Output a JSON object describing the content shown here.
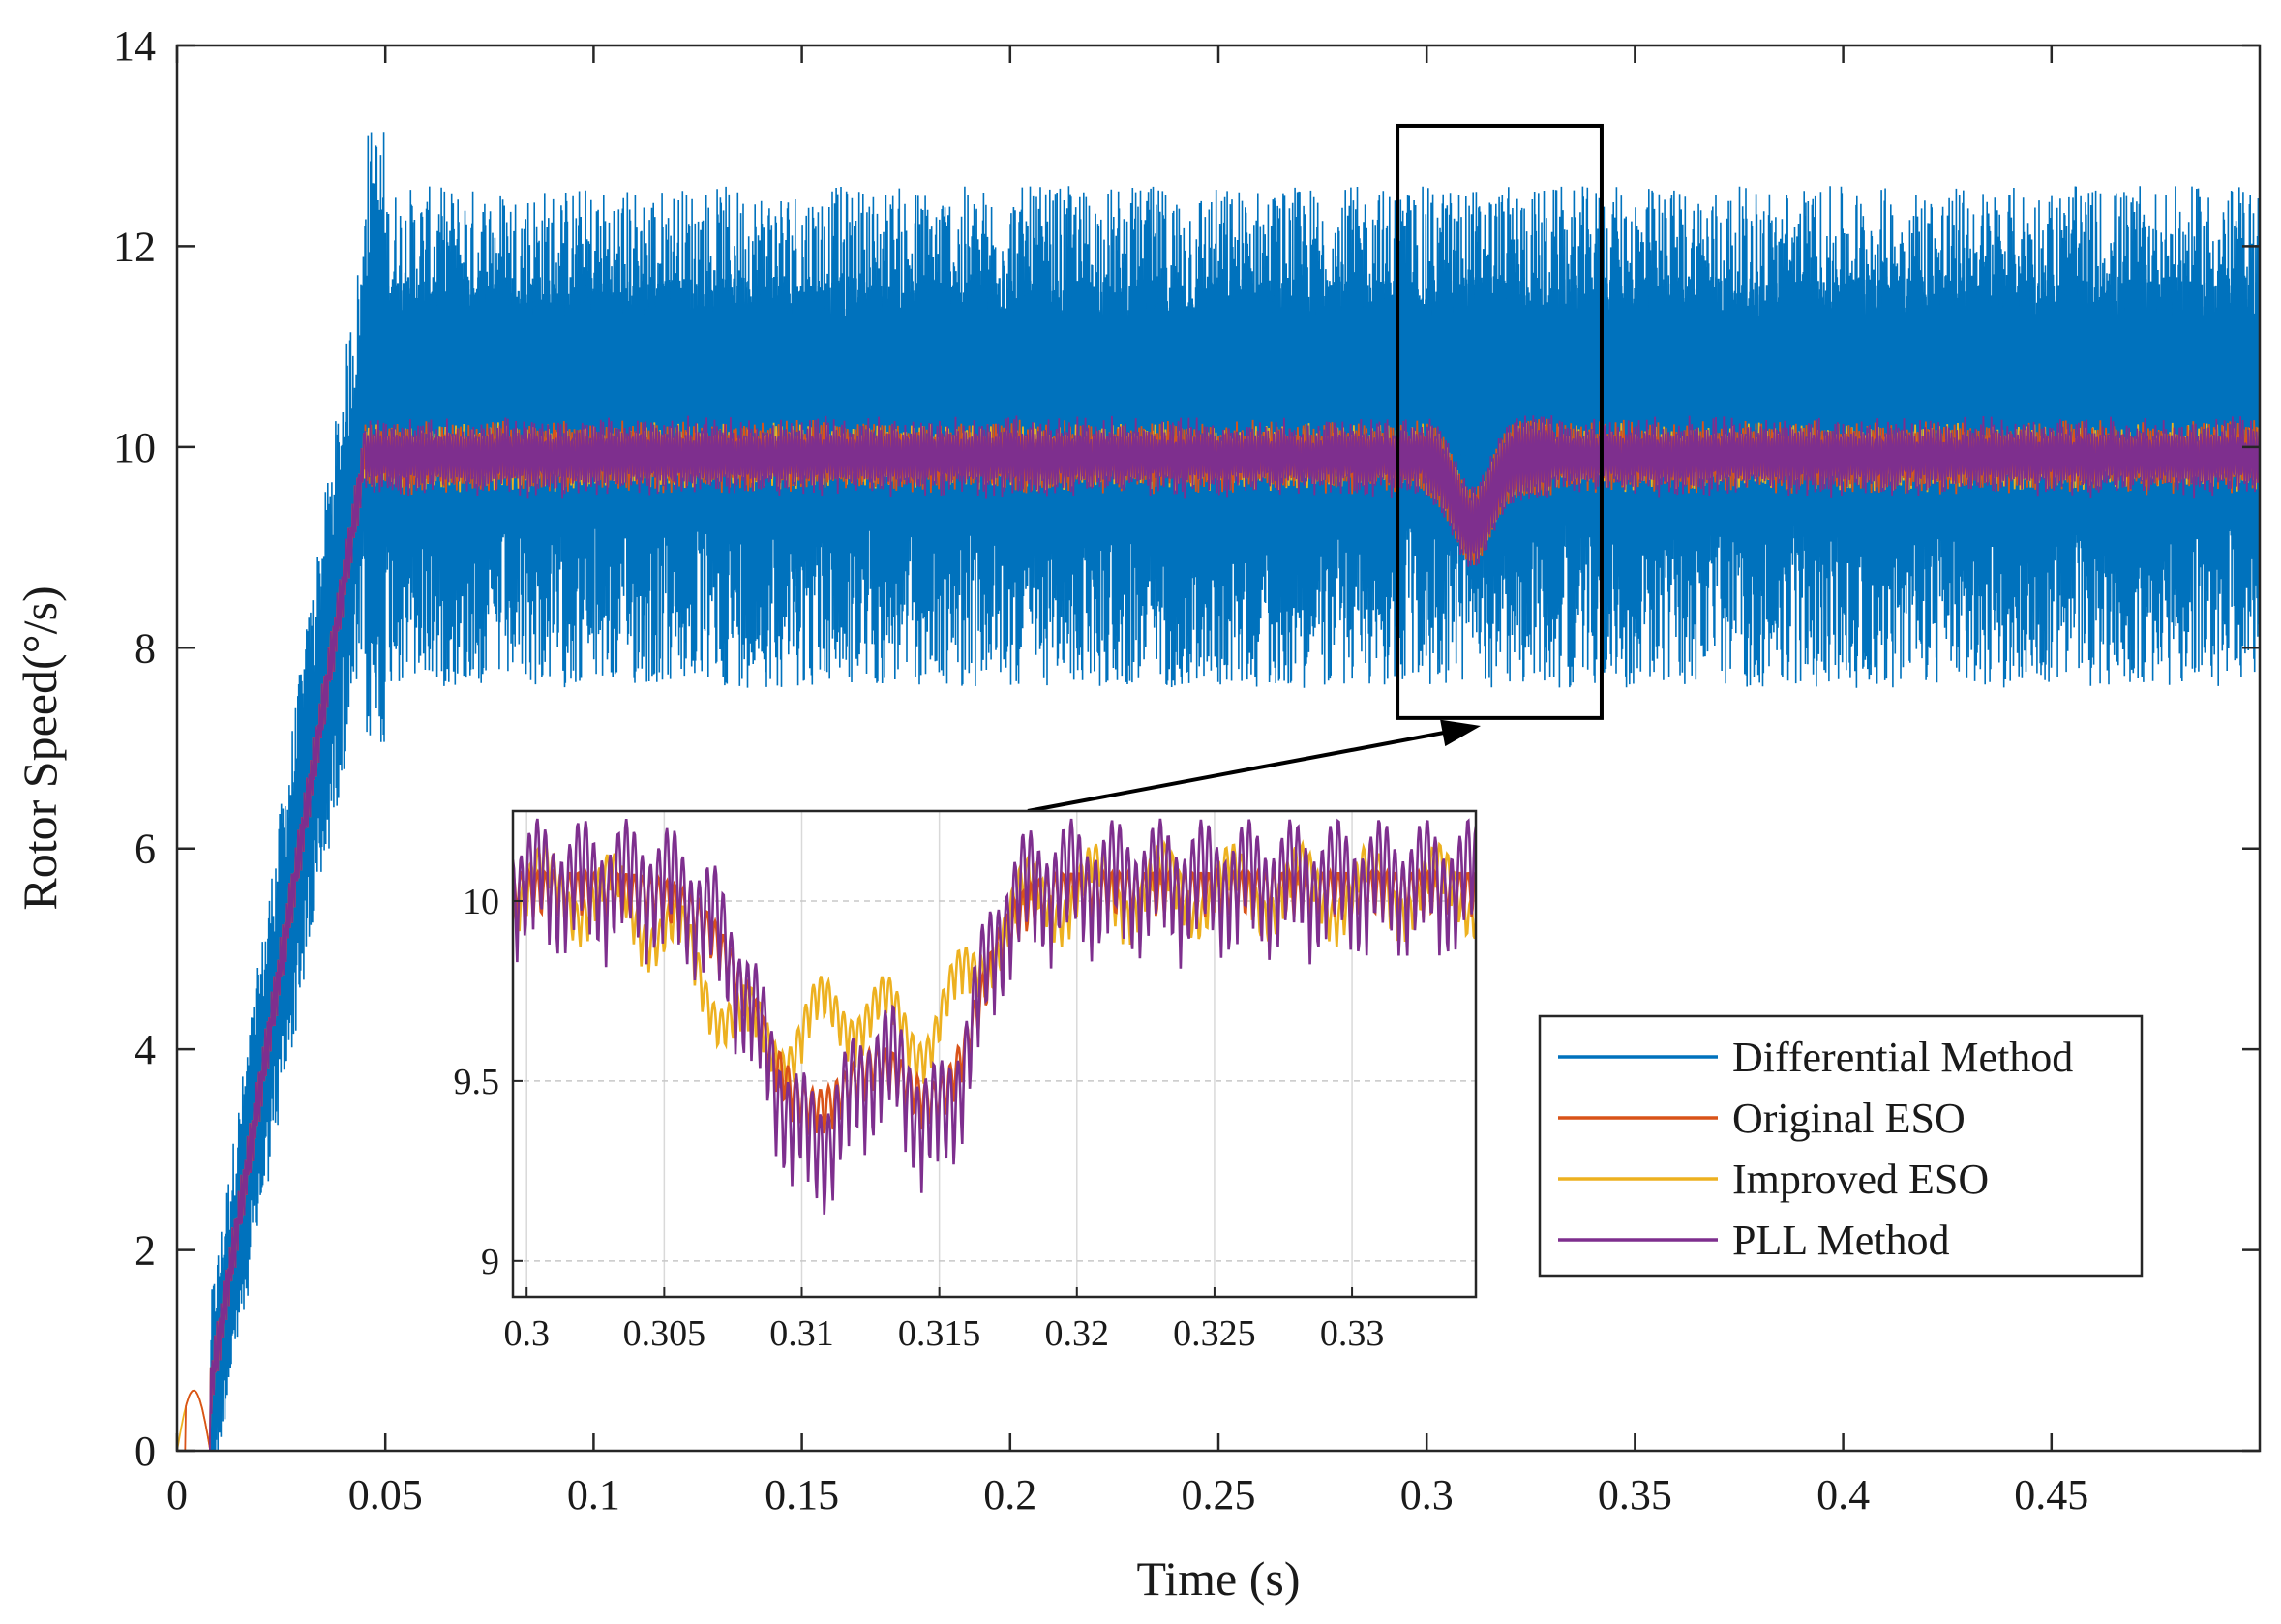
{
  "chart_data": {
    "type": "line",
    "xlabel": "Time (s)",
    "ylabel": "Rotor Speed(°/s)",
    "xlim": [
      0,
      0.5
    ],
    "ylim": [
      0,
      14
    ],
    "xticks": [
      0,
      0.05,
      0.1,
      0.15,
      0.2,
      0.25,
      0.3,
      0.35,
      0.4,
      0.45
    ],
    "xtick_labels": [
      "0",
      "0.05",
      "0.1",
      "0.15",
      "0.2",
      "0.25",
      "0.3",
      "0.35",
      "0.4",
      "0.45"
    ],
    "yticks": [
      0,
      2,
      4,
      6,
      8,
      10,
      12,
      14
    ],
    "ytick_labels": [
      "0",
      "2",
      "4",
      "6",
      "8",
      "10",
      "12",
      "14"
    ],
    "series": [
      {
        "name": "Differential Method",
        "color": "#0072BD",
        "steady_mean": 10.1,
        "steady_min": 7.6,
        "steady_max": 12.6,
        "rise_time": 0.045
      },
      {
        "name": "Original ESO",
        "color": "#D95319",
        "steady_mean": 9.9,
        "steady_min": 9.4,
        "steady_max": 10.3,
        "rise_time": 0.045
      },
      {
        "name": "Improved ESO",
        "color": "#EDB120",
        "steady_mean": 9.9,
        "steady_min": 9.5,
        "steady_max": 10.3,
        "rise_time": 0.045
      },
      {
        "name": "PLL Method",
        "color": "#7E2F8E",
        "steady_mean": 9.9,
        "steady_min": 9.2,
        "steady_max": 10.3,
        "rise_time": 0.045
      }
    ],
    "highlight_box": {
      "x_range": [
        0.293,
        0.342
      ],
      "y_range": [
        7.3,
        13.2
      ]
    },
    "inset": {
      "xlim": [
        0.2995,
        0.3345
      ],
      "ylim": [
        8.9,
        10.25
      ],
      "xticks": [
        0.3,
        0.305,
        0.31,
        0.315,
        0.32,
        0.325,
        0.33
      ],
      "xtick_labels": [
        "0.3",
        "0.305",
        "0.31",
        "0.315",
        "0.32",
        "0.325",
        "0.33"
      ],
      "yticks": [
        9,
        9.5,
        10
      ],
      "ytick_labels": [
        "9",
        "9.5",
        "10"
      ]
    },
    "legend": {
      "position": "lower-right",
      "entries": [
        "Differential Method",
        "Original ESO",
        "Improved ESO",
        "PLL Method"
      ]
    }
  }
}
